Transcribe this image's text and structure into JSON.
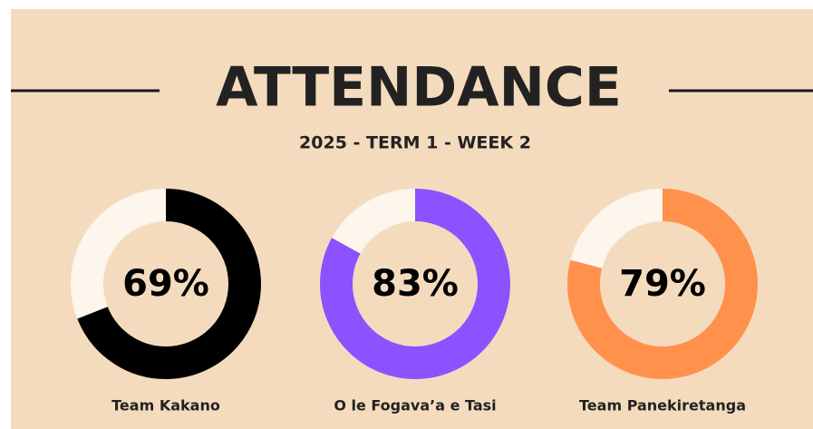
{
  "header": {
    "title": "ATTENDANCE",
    "subtitle": "2025 - TERM 1 - WEEK 2"
  },
  "chart_data": [
    {
      "type": "donut",
      "categories": [
        "Team Kakano"
      ],
      "values": [
        69
      ],
      "value_labels": [
        "69%"
      ],
      "color": "#000000",
      "ylim": [
        0,
        100
      ]
    },
    {
      "type": "donut",
      "categories": [
        "O le Fogava’a e Tasi"
      ],
      "values": [
        83
      ],
      "value_labels": [
        "83%"
      ],
      "color": "#8c52ff",
      "ylim": [
        0,
        100
      ]
    },
    {
      "type": "donut",
      "categories": [
        "Team Panekiretanga"
      ],
      "values": [
        79
      ],
      "value_labels": [
        "79%"
      ],
      "color": "#ff914d",
      "ylim": [
        0,
        100
      ]
    }
  ]
}
